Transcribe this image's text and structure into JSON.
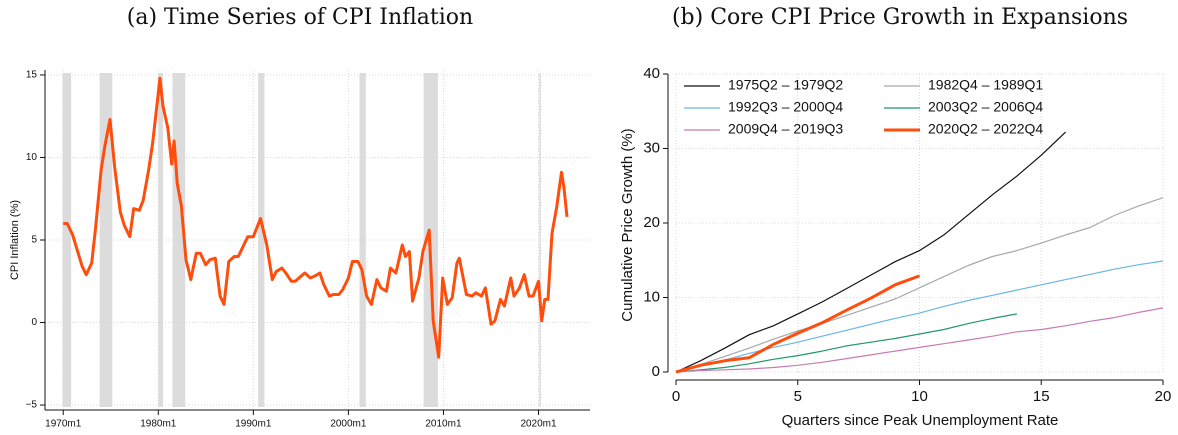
{
  "chart_data": [
    {
      "type": "line",
      "title": "(a) Time Series of CPI Inflation",
      "y_label": "CPI Inflation (%)",
      "color": "#ff4d0d",
      "shade_color": "#dcdcdc",
      "grid": true,
      "xlim": [
        "1968-02",
        "2025-06"
      ],
      "ylim": [
        -5.3,
        15.3
      ],
      "xticks": [
        {
          "value": "1970-01",
          "label": "1970m1"
        },
        {
          "value": "1980-01",
          "label": "1980m1"
        },
        {
          "value": "1990-01",
          "label": "1990m1"
        },
        {
          "value": "2000-01",
          "label": "2000m1"
        },
        {
          "value": "2010-01",
          "label": "2010m1"
        },
        {
          "value": "2020-01",
          "label": "2020m1"
        }
      ],
      "yticks": [
        {
          "value": -5,
          "label": "−5"
        },
        0,
        5,
        10,
        15
      ],
      "shaded_periods": [
        [
          "1969-12",
          "1970-11"
        ],
        [
          "1973-11",
          "1975-03"
        ],
        [
          "1980-01",
          "1980-07"
        ],
        [
          "1981-07",
          "1982-11"
        ],
        [
          "1990-07",
          "1991-03"
        ],
        [
          "2001-03",
          "2001-11"
        ],
        [
          "2007-12",
          "2009-06"
        ],
        [
          "2020-02",
          "2020-04"
        ]
      ],
      "x": [
        "1970-01",
        "1970-06",
        "1971-01",
        "1971-06",
        "1972-01",
        "1972-06",
        "1973-01",
        "1973-06",
        "1974-01",
        "1974-06",
        "1974-12",
        "1975-06",
        "1976-01",
        "1976-06",
        "1977-01",
        "1977-06",
        "1978-01",
        "1978-06",
        "1979-01",
        "1979-06",
        "1980-01",
        "1980-03",
        "1980-07",
        "1981-01",
        "1981-06",
        "1981-09",
        "1982-01",
        "1982-06",
        "1982-12",
        "1983-06",
        "1984-01",
        "1984-06",
        "1985-01",
        "1985-06",
        "1986-01",
        "1986-07",
        "1986-12",
        "1987-06",
        "1988-01",
        "1988-06",
        "1989-01",
        "1989-06",
        "1990-01",
        "1990-10",
        "1991-06",
        "1992-01",
        "1992-06",
        "1993-01",
        "1993-06",
        "1994-01",
        "1994-06",
        "1995-01",
        "1995-06",
        "1996-01",
        "1996-06",
        "1997-01",
        "1997-06",
        "1998-01",
        "1998-06",
        "1999-01",
        "1999-06",
        "2000-01",
        "2000-06",
        "2001-01",
        "2001-06",
        "2001-12",
        "2002-06",
        "2003-01",
        "2003-06",
        "2004-01",
        "2004-06",
        "2005-01",
        "2005-09",
        "2006-01",
        "2006-06",
        "2006-10",
        "2007-06",
        "2007-11",
        "2008-07",
        "2008-12",
        "2009-07",
        "2009-12",
        "2010-06",
        "2010-12",
        "2011-06",
        "2011-09",
        "2012-06",
        "2013-01",
        "2013-06",
        "2014-01",
        "2014-06",
        "2015-01",
        "2015-06",
        "2016-01",
        "2016-06",
        "2017-02",
        "2017-06",
        "2018-01",
        "2018-07",
        "2019-01",
        "2019-06",
        "2020-01",
        "2020-05",
        "2020-09",
        "2021-01",
        "2021-06",
        "2021-12",
        "2022-06",
        "2022-09",
        "2023-01"
      ],
      "values": [
        6.0,
        6.0,
        5.3,
        4.5,
        3.4,
        2.9,
        3.6,
        5.8,
        9.3,
        10.8,
        12.3,
        9.4,
        6.7,
        5.9,
        5.2,
        6.9,
        6.8,
        7.4,
        9.3,
        10.9,
        13.9,
        14.8,
        13.1,
        11.8,
        9.6,
        11.0,
        8.4,
        7.1,
        3.8,
        2.6,
        4.2,
        4.2,
        3.5,
        3.8,
        3.9,
        1.6,
        1.1,
        3.7,
        4.0,
        4.0,
        4.7,
        5.2,
        5.2,
        6.3,
        4.7,
        2.6,
        3.1,
        3.3,
        3.0,
        2.5,
        2.5,
        2.8,
        3.0,
        2.7,
        2.8,
        3.0,
        2.3,
        1.6,
        1.7,
        1.7,
        2.0,
        2.7,
        3.7,
        3.7,
        3.2,
        1.6,
        1.1,
        2.6,
        2.1,
        1.9,
        3.3,
        3.0,
        4.7,
        4.0,
        4.3,
        1.3,
        2.7,
        4.3,
        5.6,
        0.1,
        -2.1,
        2.7,
        1.1,
        1.5,
        3.6,
        3.9,
        1.7,
        1.6,
        1.8,
        1.6,
        2.1,
        -0.1,
        0.1,
        1.4,
        1.0,
        2.7,
        1.6,
        2.1,
        2.9,
        1.6,
        1.6,
        2.5,
        0.1,
        1.4,
        1.4,
        5.4,
        7.0,
        9.1,
        8.2,
        6.4
      ]
    },
    {
      "type": "line",
      "title": "(b) Core CPI Price Growth in Expansions",
      "x_label": "Quarters since Peak Unemployment Rate",
      "y_label": "Cumulative Price Growth (%)",
      "grid": true,
      "legend": "upper left",
      "xlim": [
        0,
        20
      ],
      "ylim": [
        0,
        40
      ],
      "xticks": [
        0,
        5,
        10,
        15,
        20
      ],
      "yticks": [
        0,
        10,
        20,
        30,
        40
      ],
      "x": [
        0,
        1,
        2,
        3,
        4,
        5,
        6,
        7,
        8,
        9,
        10,
        11,
        12,
        13,
        14,
        15,
        16,
        17,
        18,
        19,
        20
      ],
      "series": [
        {
          "name": "1975Q2 – 1979Q2",
          "color": "#111111",
          "values": [
            0,
            1.5,
            3.2,
            5.0,
            6.2,
            7.8,
            9.4,
            11.2,
            13.0,
            14.8,
            16.3,
            18.4,
            21.1,
            23.8,
            26.3,
            29.1,
            32.2,
            null,
            null,
            null,
            null
          ]
        },
        {
          "name": "1982Q4 – 1989Q1",
          "color": "#a8a8a8",
          "values": [
            0,
            1.0,
            2.1,
            3.2,
            4.4,
            5.5,
            6.5,
            7.6,
            8.7,
            9.8,
            11.3,
            12.8,
            14.3,
            15.5,
            16.3,
            17.3,
            18.4,
            19.4,
            21.0,
            22.3,
            23.4
          ]
        },
        {
          "name": "1992Q3 – 2000Q4",
          "color": "#6ab7e0",
          "values": [
            0,
            0.8,
            1.6,
            2.5,
            3.3,
            4.0,
            4.8,
            5.6,
            6.4,
            7.2,
            7.9,
            8.8,
            9.6,
            10.3,
            11.0,
            11.7,
            12.4,
            13.1,
            13.8,
            14.4,
            14.9
          ]
        },
        {
          "name": "2003Q2 – 2006Q4",
          "color": "#22976c",
          "values": [
            0,
            0.3,
            0.6,
            1.1,
            1.7,
            2.2,
            2.8,
            3.5,
            4.0,
            4.5,
            5.1,
            5.7,
            6.5,
            7.2,
            7.8,
            null,
            null,
            null,
            null,
            null,
            null
          ]
        },
        {
          "name": "2009Q4 – 2019Q3",
          "color": "#c77bb5",
          "values": [
            0,
            0.2,
            0.3,
            0.4,
            0.6,
            0.9,
            1.3,
            1.8,
            2.3,
            2.8,
            3.3,
            3.8,
            4.3,
            4.8,
            5.4,
            5.7,
            6.2,
            6.8,
            7.3,
            8.0,
            8.6
          ]
        },
        {
          "name": "2020Q2 – 2022Q4",
          "color": "#ff4d0d",
          "values": [
            0,
            0.9,
            1.5,
            1.9,
            3.7,
            5.2,
            6.6,
            8.3,
            9.9,
            11.7,
            12.9,
            null,
            null,
            null,
            null,
            null,
            null,
            null,
            null,
            null,
            null
          ]
        }
      ]
    }
  ]
}
